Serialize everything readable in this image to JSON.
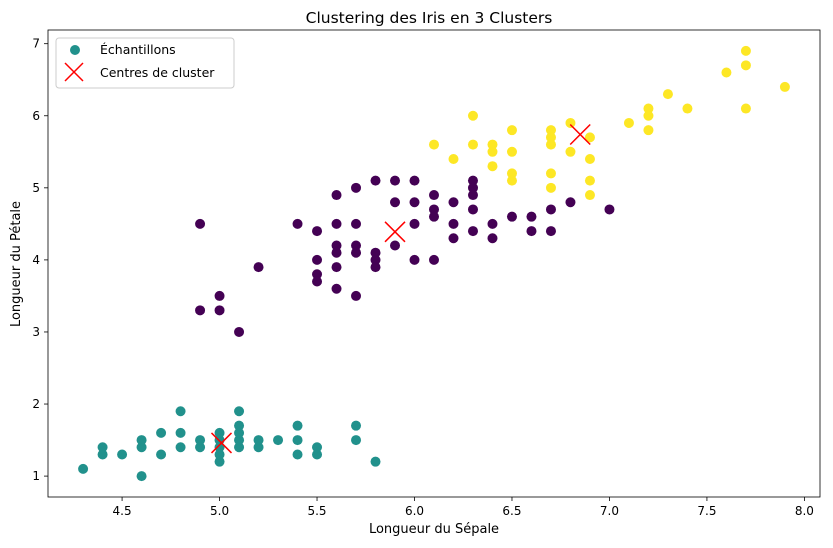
{
  "chart_data": {
    "type": "scatter",
    "title": "Clustering des Iris en 3 Clusters",
    "xlabel": "Longueur du Sépale",
    "ylabel": "Longueur du Pétale",
    "xlim": [
      4.12,
      8.08
    ],
    "ylim": [
      0.71,
      7.19
    ],
    "xticks": [
      "4.5",
      "5.0",
      "5.5",
      "6.0",
      "6.5",
      "7.0",
      "7.5",
      "8.0"
    ],
    "yticks": [
      "1",
      "2",
      "3",
      "4",
      "5",
      "6",
      "7"
    ],
    "grid": false,
    "legend_position": "top-left",
    "series": [
      {
        "name": "Échantillons",
        "marker": "circle",
        "colors": {
          "cluster_0": "#440154",
          "cluster_1": "#21918c",
          "cluster_2": "#fde725"
        },
        "points": [
          [
            4.3,
            1.1,
            1
          ],
          [
            4.4,
            1.3,
            1
          ],
          [
            4.4,
            1.4,
            1
          ],
          [
            4.5,
            1.3,
            1
          ],
          [
            4.6,
            1.0,
            1
          ],
          [
            4.6,
            1.4,
            1
          ],
          [
            4.6,
            1.5,
            1
          ],
          [
            4.7,
            1.3,
            1
          ],
          [
            4.7,
            1.6,
            1
          ],
          [
            4.8,
            1.4,
            1
          ],
          [
            4.8,
            1.6,
            1
          ],
          [
            4.8,
            1.9,
            1
          ],
          [
            4.9,
            1.4,
            1
          ],
          [
            4.9,
            1.5,
            1
          ],
          [
            5.0,
            1.2,
            1
          ],
          [
            5.0,
            1.3,
            1
          ],
          [
            5.0,
            1.4,
            1
          ],
          [
            5.0,
            1.5,
            1
          ],
          [
            5.0,
            1.6,
            1
          ],
          [
            5.1,
            1.4,
            1
          ],
          [
            5.1,
            1.5,
            1
          ],
          [
            5.1,
            1.6,
            1
          ],
          [
            5.1,
            1.7,
            1
          ],
          [
            5.1,
            1.9,
            1
          ],
          [
            5.2,
            1.4,
            1
          ],
          [
            5.2,
            1.5,
            1
          ],
          [
            5.3,
            1.5,
            1
          ],
          [
            5.4,
            1.3,
            1
          ],
          [
            5.4,
            1.5,
            1
          ],
          [
            5.4,
            1.7,
            1
          ],
          [
            5.5,
            1.3,
            1
          ],
          [
            5.5,
            1.4,
            1
          ],
          [
            5.7,
            1.5,
            1
          ],
          [
            5.7,
            1.7,
            1
          ],
          [
            5.8,
            1.2,
            1
          ],
          [
            4.9,
            4.5,
            0
          ],
          [
            4.9,
            3.3,
            0
          ],
          [
            5.0,
            3.5,
            0
          ],
          [
            5.0,
            3.3,
            0
          ],
          [
            5.1,
            3.0,
            0
          ],
          [
            5.2,
            3.9,
            0
          ],
          [
            5.4,
            4.5,
            0
          ],
          [
            5.5,
            4.4,
            0
          ],
          [
            5.5,
            4.0,
            0
          ],
          [
            5.5,
            3.8,
            0
          ],
          [
            5.5,
            3.7,
            0
          ],
          [
            5.6,
            4.9,
            0
          ],
          [
            5.6,
            4.5,
            0
          ],
          [
            5.6,
            4.2,
            0
          ],
          [
            5.6,
            4.1,
            0
          ],
          [
            5.6,
            3.9,
            0
          ],
          [
            5.6,
            3.6,
            0
          ],
          [
            5.7,
            5.0,
            0
          ],
          [
            5.7,
            4.5,
            0
          ],
          [
            5.7,
            4.2,
            0
          ],
          [
            5.7,
            4.1,
            0
          ],
          [
            5.7,
            3.5,
            0
          ],
          [
            5.8,
            5.1,
            0
          ],
          [
            5.8,
            4.1,
            0
          ],
          [
            5.8,
            4.0,
            0
          ],
          [
            5.8,
            3.9,
            0
          ],
          [
            5.9,
            5.1,
            0
          ],
          [
            5.9,
            4.8,
            0
          ],
          [
            5.9,
            4.2,
            0
          ],
          [
            6.0,
            5.1,
            0
          ],
          [
            6.0,
            4.8,
            0
          ],
          [
            6.0,
            4.5,
            0
          ],
          [
            6.0,
            4.0,
            0
          ],
          [
            6.1,
            4.9,
            0
          ],
          [
            6.1,
            4.7,
            0
          ],
          [
            6.1,
            4.6,
            0
          ],
          [
            6.1,
            4.0,
            0
          ],
          [
            6.2,
            4.8,
            0
          ],
          [
            6.2,
            4.5,
            0
          ],
          [
            6.2,
            4.3,
            0
          ],
          [
            6.3,
            5.1,
            0
          ],
          [
            6.3,
            5.0,
            0
          ],
          [
            6.3,
            4.9,
            0
          ],
          [
            6.3,
            4.7,
            0
          ],
          [
            6.3,
            4.4,
            0
          ],
          [
            6.4,
            4.5,
            0
          ],
          [
            6.4,
            4.3,
            0
          ],
          [
            6.5,
            4.6,
            0
          ],
          [
            6.6,
            4.6,
            0
          ],
          [
            6.6,
            4.4,
            0
          ],
          [
            6.7,
            4.7,
            0
          ],
          [
            6.7,
            4.4,
            0
          ],
          [
            6.8,
            4.8,
            0
          ],
          [
            7.0,
            4.7,
            0
          ],
          [
            6.1,
            5.6,
            2
          ],
          [
            6.2,
            5.4,
            2
          ],
          [
            6.3,
            6.0,
            2
          ],
          [
            6.3,
            5.6,
            2
          ],
          [
            6.4,
            5.6,
            2
          ],
          [
            6.4,
            5.5,
            2
          ],
          [
            6.4,
            5.3,
            2
          ],
          [
            6.5,
            5.8,
            2
          ],
          [
            6.5,
            5.5,
            2
          ],
          [
            6.5,
            5.2,
            2
          ],
          [
            6.5,
            5.1,
            2
          ],
          [
            6.7,
            5.8,
            2
          ],
          [
            6.7,
            5.7,
            2
          ],
          [
            6.7,
            5.6,
            2
          ],
          [
            6.7,
            5.2,
            2
          ],
          [
            6.7,
            5.0,
            2
          ],
          [
            6.8,
            5.9,
            2
          ],
          [
            6.8,
            5.5,
            2
          ],
          [
            6.9,
            5.7,
            2
          ],
          [
            6.9,
            5.4,
            2
          ],
          [
            6.9,
            5.1,
            2
          ],
          [
            6.9,
            4.9,
            2
          ],
          [
            7.1,
            5.9,
            2
          ],
          [
            7.2,
            6.1,
            2
          ],
          [
            7.2,
            6.0,
            2
          ],
          [
            7.2,
            5.8,
            2
          ],
          [
            7.3,
            6.3,
            2
          ],
          [
            7.4,
            6.1,
            2
          ],
          [
            7.6,
            6.6,
            2
          ],
          [
            7.7,
            6.9,
            2
          ],
          [
            7.7,
            6.7,
            2
          ],
          [
            7.7,
            6.1,
            2
          ],
          [
            7.9,
            6.4,
            2
          ]
        ]
      },
      {
        "name": "Centres de cluster",
        "marker": "x",
        "color": "#ff0000",
        "points": [
          [
            5.9,
            4.39
          ],
          [
            5.01,
            1.46
          ],
          [
            6.85,
            5.74
          ]
        ]
      }
    ]
  }
}
